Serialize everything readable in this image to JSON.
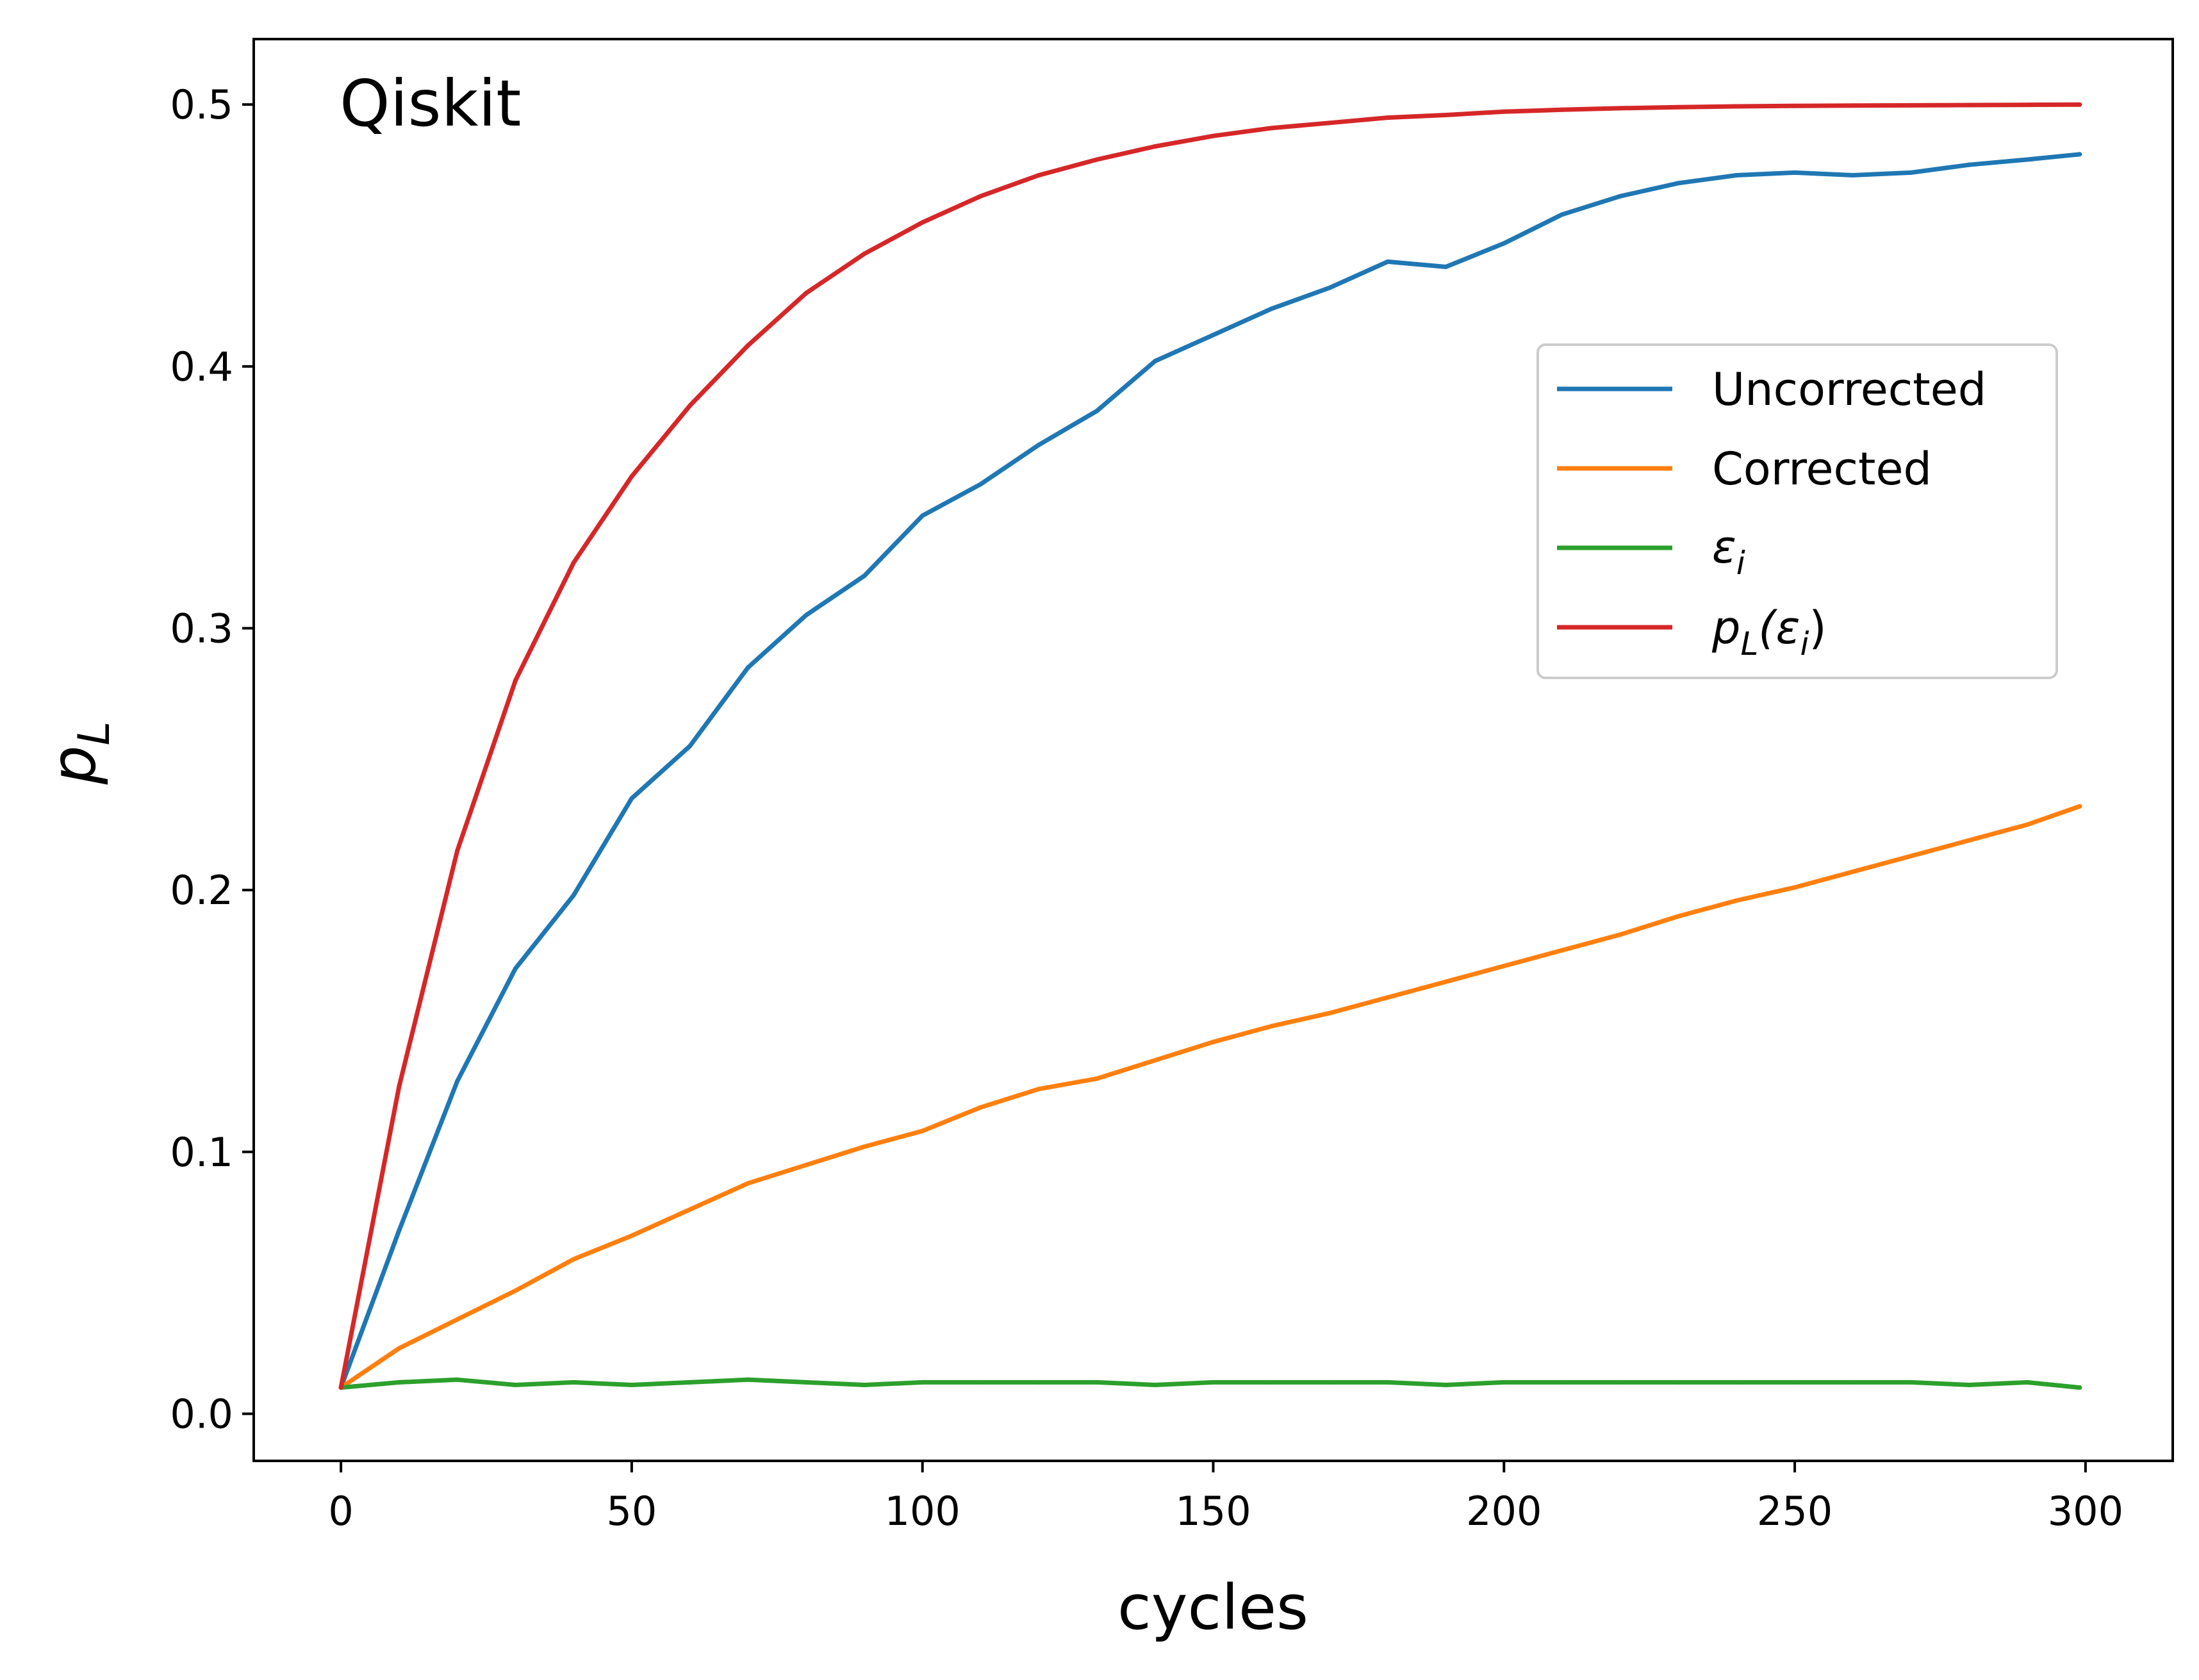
{
  "chart_data": {
    "type": "line",
    "title": "",
    "annotation": "Qiskit",
    "xlabel": "cycles",
    "ylabel": "p_L",
    "ylabel_main": "p",
    "ylabel_sub": "L",
    "xlim": [
      -15,
      315
    ],
    "ylim": [
      -0.018,
      0.525
    ],
    "xticks": [
      0,
      50,
      100,
      150,
      200,
      250,
      300
    ],
    "xtick_labels": [
      "0",
      "50",
      "100",
      "150",
      "200",
      "250",
      "300"
    ],
    "yticks": [
      0.0,
      0.1,
      0.2,
      0.3,
      0.4,
      0.5
    ],
    "ytick_labels": [
      "0.0",
      "0.1",
      "0.2",
      "0.3",
      "0.4",
      "0.5"
    ],
    "grid": false,
    "legend_position": "right, upper-middle",
    "x": [
      0,
      10,
      20,
      30,
      40,
      50,
      60,
      70,
      80,
      90,
      100,
      110,
      120,
      130,
      140,
      150,
      160,
      170,
      180,
      190,
      200,
      210,
      220,
      230,
      240,
      250,
      260,
      270,
      280,
      290,
      299
    ],
    "series": [
      {
        "name": "Uncorrected",
        "legend_label": "Uncorrected",
        "color": "#1f77b4",
        "values": [
          0.01,
          0.07,
          0.127,
          0.17,
          0.198,
          0.235,
          0.255,
          0.285,
          0.305,
          0.32,
          0.343,
          0.355,
          0.37,
          0.383,
          0.402,
          0.412,
          0.422,
          0.43,
          0.44,
          0.438,
          0.447,
          0.458,
          0.465,
          0.47,
          0.473,
          0.474,
          0.473,
          0.474,
          0.477,
          0.479,
          0.481
        ]
      },
      {
        "name": "Corrected",
        "legend_label": "Corrected",
        "color": "#ff7f0e",
        "values": [
          0.01,
          0.025,
          0.036,
          0.047,
          0.059,
          0.068,
          0.078,
          0.088,
          0.095,
          0.102,
          0.108,
          0.117,
          0.124,
          0.128,
          0.135,
          0.142,
          0.148,
          0.153,
          0.159,
          0.165,
          0.171,
          0.177,
          0.183,
          0.19,
          0.196,
          0.201,
          0.207,
          0.213,
          0.219,
          0.225,
          0.232
        ]
      },
      {
        "name": "epsilon_i",
        "legend_label": "ε",
        "legend_sub": "i",
        "color": "#2ca02c",
        "values": [
          0.01,
          0.012,
          0.013,
          0.011,
          0.012,
          0.011,
          0.012,
          0.013,
          0.012,
          0.011,
          0.012,
          0.012,
          0.012,
          0.012,
          0.011,
          0.012,
          0.012,
          0.012,
          0.012,
          0.011,
          0.012,
          0.012,
          0.012,
          0.012,
          0.012,
          0.012,
          0.012,
          0.012,
          0.011,
          0.012,
          0.01
        ]
      },
      {
        "name": "p_L(epsilon_i)",
        "legend_label": "p",
        "legend_sub": "L",
        "legend_tail": "(ε",
        "legend_tail_sub": "i",
        "legend_end": ")",
        "color": "#d62728",
        "values": [
          0.01,
          0.125,
          0.215,
          0.28,
          0.325,
          0.358,
          0.385,
          0.408,
          0.428,
          0.443,
          0.455,
          0.465,
          0.473,
          0.479,
          0.484,
          0.488,
          0.491,
          0.493,
          0.495,
          0.496,
          0.4973,
          0.498,
          0.4986,
          0.499,
          0.4993,
          0.4995,
          0.4996,
          0.4997,
          0.4998,
          0.4999,
          0.5
        ]
      }
    ]
  }
}
